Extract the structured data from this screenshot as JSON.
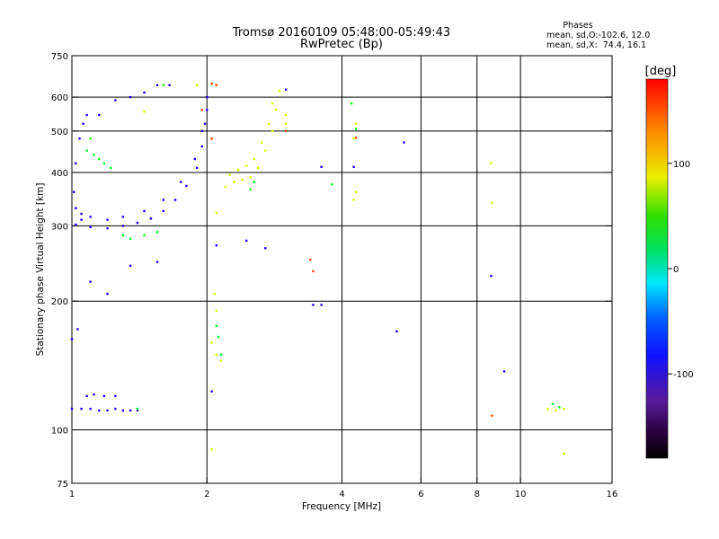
{
  "header": {
    "title_line1": "Tromsø 20160109 05:48:00-05:49:43",
    "title_line2": "RwPretec (Bp)"
  },
  "stats": {
    "heading": "Phases",
    "line_o": "mean, sd,O:-102.6, 12.0",
    "line_x": "mean, sd,X:  74.4, 16.1"
  },
  "chart_data": {
    "type": "scatter",
    "xlabel": "Frequency [MHz]",
    "ylabel": "Stationary phase Virtual Height [km]",
    "x_scale": "log",
    "y_scale": "log",
    "xlim": [
      1,
      16
    ],
    "ylim": [
      75,
      750
    ],
    "x_ticks": [
      1,
      2,
      4,
      6,
      8,
      10,
      16
    ],
    "y_ticks": [
      75,
      100,
      200,
      300,
      400,
      500,
      600,
      750
    ],
    "x_grid": [
      2,
      4,
      6,
      8,
      10
    ],
    "y_grid": [
      100,
      200,
      300,
      400,
      500,
      600
    ],
    "colorbar": {
      "label": "[deg]",
      "range": [
        -180,
        180
      ],
      "ticks": [
        -100,
        0,
        100
      ]
    },
    "series": [
      {
        "color_phase": -105,
        "points": [
          [
            1.0,
            112
          ],
          [
            1.05,
            112
          ],
          [
            1.1,
            112
          ],
          [
            1.15,
            111
          ],
          [
            1.2,
            111
          ],
          [
            1.25,
            112
          ],
          [
            1.3,
            111
          ],
          [
            1.35,
            111
          ],
          [
            1.4,
            111
          ],
          [
            1.08,
            120
          ],
          [
            1.12,
            121
          ],
          [
            1.18,
            120
          ],
          [
            1.25,
            120
          ],
          [
            1.0,
            163
          ],
          [
            1.03,
            172
          ],
          [
            1.02,
            302
          ],
          [
            1.05,
            310
          ],
          [
            1.1,
            298
          ],
          [
            1.2,
            296
          ],
          [
            1.3,
            300
          ],
          [
            1.4,
            305
          ],
          [
            1.5,
            312
          ],
          [
            1.6,
            325
          ],
          [
            1.7,
            345
          ],
          [
            1.8,
            372
          ],
          [
            1.9,
            410
          ],
          [
            1.95,
            460
          ],
          [
            1.98,
            520
          ],
          [
            2.0,
            600
          ],
          [
            1.02,
            330
          ],
          [
            1.05,
            320
          ],
          [
            1.1,
            315
          ],
          [
            1.2,
            310
          ],
          [
            1.3,
            315
          ],
          [
            1.45,
            325
          ],
          [
            1.6,
            345
          ],
          [
            1.75,
            380
          ],
          [
            1.88,
            430
          ],
          [
            1.95,
            500
          ],
          [
            2.0,
            560
          ],
          [
            1.01,
            360
          ],
          [
            1.02,
            420
          ],
          [
            1.04,
            480
          ],
          [
            1.06,
            520
          ],
          [
            1.08,
            545
          ],
          [
            1.15,
            545
          ],
          [
            1.25,
            590
          ],
          [
            1.35,
            600
          ],
          [
            1.45,
            615
          ],
          [
            1.55,
            640
          ],
          [
            1.65,
            640
          ],
          [
            1.2,
            208
          ],
          [
            1.1,
            222
          ],
          [
            1.35,
            242
          ],
          [
            1.55,
            247
          ],
          [
            2.45,
            277
          ],
          [
            2.7,
            266
          ],
          [
            3.0,
            625
          ],
          [
            3.45,
            196
          ],
          [
            3.6,
            196
          ],
          [
            3.6,
            412
          ],
          [
            4.25,
            412
          ],
          [
            5.5,
            470
          ],
          [
            5.3,
            170
          ],
          [
            8.6,
            229
          ],
          [
            9.2,
            137
          ],
          [
            2.05,
            123
          ],
          [
            2.1,
            270
          ]
        ]
      },
      {
        "color_phase": 105,
        "points": [
          [
            2.2,
            370
          ],
          [
            2.3,
            380
          ],
          [
            2.4,
            385
          ],
          [
            2.5,
            390
          ],
          [
            2.6,
            410
          ],
          [
            2.7,
            450
          ],
          [
            2.8,
            500
          ],
          [
            2.85,
            560
          ],
          [
            2.9,
            620
          ],
          [
            2.25,
            395
          ],
          [
            2.35,
            405
          ],
          [
            2.45,
            415
          ],
          [
            2.55,
            430
          ],
          [
            2.65,
            470
          ],
          [
            2.75,
            520
          ],
          [
            2.8,
            580
          ],
          [
            2.1,
            322
          ],
          [
            2.08,
            208
          ],
          [
            2.1,
            190
          ],
          [
            2.05,
            160
          ],
          [
            2.1,
            150
          ],
          [
            2.15,
            145
          ],
          [
            2.05,
            90
          ],
          [
            3.0,
            520
          ],
          [
            3.0,
            545
          ],
          [
            4.3,
            520
          ],
          [
            4.25,
            480
          ],
          [
            4.3,
            360
          ],
          [
            4.25,
            345
          ],
          [
            8.6,
            420
          ],
          [
            8.65,
            340
          ],
          [
            11.5,
            112
          ],
          [
            12.0,
            111
          ],
          [
            12.5,
            112
          ],
          [
            12.5,
            88
          ],
          [
            1.45,
            555
          ],
          [
            1.9,
            640
          ]
        ]
      },
      {
        "color_phase": 40,
        "points": [
          [
            1.08,
            450
          ],
          [
            1.12,
            440
          ],
          [
            1.15,
            430
          ],
          [
            1.18,
            420
          ],
          [
            1.22,
            410
          ],
          [
            1.1,
            480
          ],
          [
            1.3,
            285
          ],
          [
            1.35,
            280
          ],
          [
            1.45,
            285
          ],
          [
            1.55,
            290
          ],
          [
            1.4,
            112
          ],
          [
            1.6,
            640
          ],
          [
            2.1,
            175
          ],
          [
            2.12,
            165
          ],
          [
            2.15,
            150
          ],
          [
            2.5,
            365
          ],
          [
            2.55,
            380
          ],
          [
            3.8,
            375
          ],
          [
            4.2,
            580
          ],
          [
            4.3,
            505
          ],
          [
            11.8,
            115
          ],
          [
            12.2,
            113
          ]
        ]
      },
      {
        "color_phase": 160,
        "points": [
          [
            2.05,
            645
          ],
          [
            2.1,
            640
          ],
          [
            3.4,
            250
          ],
          [
            3.45,
            235
          ],
          [
            4.3,
            482
          ],
          [
            8.65,
            108
          ],
          [
            1.95,
            560
          ],
          [
            2.05,
            480
          ],
          [
            3.0,
            500
          ]
        ]
      }
    ]
  }
}
